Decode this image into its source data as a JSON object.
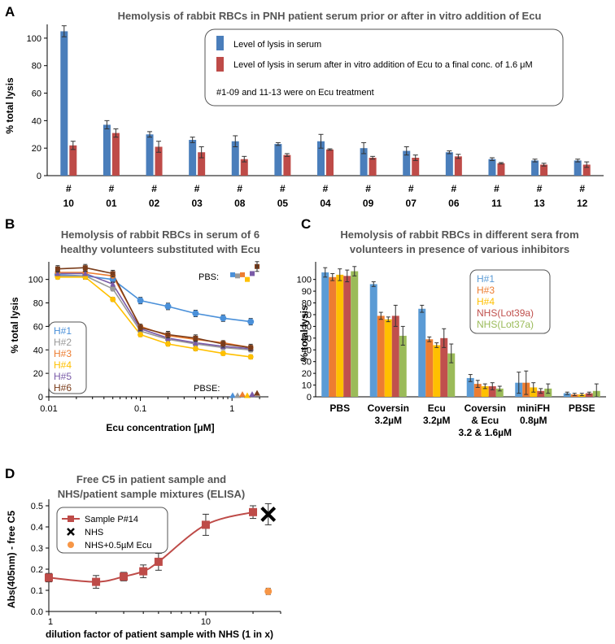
{
  "chart_data": [
    {
      "panel": "A",
      "type": "bar",
      "title": "Hemolysis of rabbit RBCs in PNH patient serum prior or after in vitro addition of Ecu",
      "ylabel": "% total lysis",
      "ylim": [
        0,
        110
      ],
      "yticks": [
        0,
        20,
        40,
        60,
        80,
        100
      ],
      "categories": [
        "10",
        "01",
        "02",
        "03",
        "08",
        "05",
        "04",
        "09",
        "07",
        "06",
        "11",
        "13",
        "12"
      ],
      "category_prefix": "#",
      "series": [
        {
          "name": "Level of lysis in serum",
          "color": "#4a7ebb",
          "values": [
            105,
            37,
            30,
            26,
            25,
            23,
            25,
            20,
            18,
            17,
            12,
            11,
            11
          ],
          "errors": [
            4,
            3,
            2,
            2,
            4,
            1,
            5,
            4,
            3,
            1,
            1,
            1,
            1
          ]
        },
        {
          "name": "Level of lysis in serum after in vitro addition of Ecu to a final conc. of 1.6 μM",
          "color": "#be4b48",
          "values": [
            22,
            31,
            21,
            17,
            12,
            15,
            19,
            13,
            13,
            14,
            9,
            8,
            8
          ],
          "errors": [
            3,
            3,
            4,
            4,
            2,
            1,
            0.5,
            1,
            2,
            1.5,
            0.5,
            1,
            2
          ]
        }
      ],
      "note": "#1-09 and 11-13 were on Ecu treatment"
    },
    {
      "panel": "B",
      "type": "line",
      "title_lines": [
        "Hemolysis of rabbit RBCs in serum of 6",
        "healthy volunteers substituted with Ecu"
      ],
      "xlabel": "Ecu concentration [μM]",
      "ylabel": "% total lysis",
      "xscale": "log",
      "xlim": [
        0.01,
        2.5
      ],
      "ylim": [
        0,
        115
      ],
      "yticks": [
        0,
        20,
        40,
        60,
        80,
        100
      ],
      "xticks": [
        {
          "v": 0.01,
          "label": "0.01"
        },
        {
          "v": 0.1,
          "label": "0.1"
        },
        {
          "v": 1,
          "label": "1"
        }
      ],
      "x": [
        0.0125,
        0.025,
        0.05,
        0.1,
        0.2,
        0.4,
        0.8,
        1.6
      ],
      "series": [
        {
          "name": "H#1",
          "color": "#4a90d9",
          "values": [
            104,
            103,
            100,
            82,
            77,
            71,
            67,
            64
          ],
          "pbs": 104,
          "pbse": 1
        },
        {
          "name": "H#2",
          "color": "#999999",
          "values": [
            103,
            103,
            92,
            56,
            49,
            45,
            42,
            40
          ],
          "pbs": 103,
          "pbse": 1
        },
        {
          "name": "H#3",
          "color": "#ed7d31",
          "values": [
            106,
            106,
            103,
            60,
            52,
            49,
            46,
            42
          ],
          "pbs": 104,
          "pbse": 2
        },
        {
          "name": "H#4",
          "color": "#ffc000",
          "values": [
            102,
            102,
            83,
            53,
            45,
            41,
            37,
            34
          ],
          "pbs": 100,
          "pbse": 1
        },
        {
          "name": "H#5",
          "color": "#7a5ba8",
          "values": [
            105,
            105,
            96,
            58,
            50,
            46,
            43,
            41
          ],
          "pbs": 105,
          "pbse": 2
        },
        {
          "name": "H#6",
          "color": "#7a3c1a",
          "values": [
            109,
            110,
            105,
            59,
            53,
            50,
            45,
            42
          ],
          "pbs": 111,
          "pbse": 3
        }
      ],
      "annotations": [
        "PBS:",
        "PBSE:"
      ]
    },
    {
      "panel": "C",
      "type": "bar",
      "title_lines": [
        "Hemolysis of rabbit RBCs in different sera from",
        "volunteers in presence of various inhibitors"
      ],
      "ylabel": "% total lysis",
      "ylim": [
        0,
        115
      ],
      "yticks": [
        0,
        10,
        20,
        30,
        40,
        50,
        60,
        70,
        80,
        90,
        100
      ],
      "categories": [
        [
          "PBS"
        ],
        [
          "Coversin",
          "3.2µM"
        ],
        [
          "Ecu",
          "3.2µM"
        ],
        [
          "Coversin",
          "& Ecu",
          "3.2 & 1.6µM"
        ],
        [
          "miniFH",
          "0.8µM"
        ],
        [
          "PBSE"
        ]
      ],
      "series": [
        {
          "name": "H#1",
          "color": "#5b9bd5",
          "values": [
            106,
            96,
            75,
            16,
            12,
            3
          ],
          "errors": [
            4,
            2,
            3,
            3,
            9,
            1
          ]
        },
        {
          "name": "H#3",
          "color": "#ed7d31",
          "values": [
            102,
            69,
            49,
            11,
            12,
            2
          ],
          "errors": [
            3,
            3,
            2,
            3,
            10,
            1
          ]
        },
        {
          "name": "H#4",
          "color": "#ffc000",
          "values": [
            104,
            66,
            44,
            9,
            8,
            2
          ],
          "errors": [
            5,
            2,
            2,
            2,
            4,
            1
          ]
        },
        {
          "name": "NHS(Lot39a)",
          "color": "#c0504d",
          "values": [
            103,
            69,
            50,
            9,
            5,
            3
          ],
          "errors": [
            5,
            9,
            8,
            3,
            2,
            1
          ]
        },
        {
          "name": "NHS(Lot37a)",
          "color": "#9bbb59",
          "values": [
            107,
            52,
            37,
            7,
            7,
            5
          ],
          "errors": [
            4,
            8,
            8,
            2,
            4,
            6
          ]
        }
      ]
    },
    {
      "panel": "D",
      "type": "scatter",
      "title_lines": [
        "Free C5 in patient sample and",
        "NHS/patient sample mixtures (ELISA)"
      ],
      "xlabel": "dilution factor of patient sample with NHS (1 in x)",
      "ylabel": "Abs(405nm) - free C5",
      "xscale": "log",
      "xlim": [
        1,
        30
      ],
      "ylim": [
        0,
        0.5
      ],
      "yticks": [
        0,
        0.1,
        0.2,
        0.3,
        0.4,
        0.5
      ],
      "xticks": [
        {
          "v": 1,
          "label": "1"
        },
        {
          "v": 10,
          "label": "10"
        }
      ],
      "series": [
        {
          "name": "Sample P#14",
          "color": "#be4b48",
          "marker": "square",
          "x": [
            1,
            2,
            3,
            4,
            5,
            10,
            20
          ],
          "values": [
            0.16,
            0.14,
            0.165,
            0.19,
            0.235,
            0.41,
            0.47
          ],
          "errors": [
            0.02,
            0.03,
            0.02,
            0.03,
            0.04,
            0.05,
            0.03
          ]
        },
        {
          "name": "NHS",
          "color": "#000000",
          "marker": "x",
          "x": [
            25
          ],
          "values": [
            0.46
          ],
          "errors": [
            0.05
          ]
        },
        {
          "name": "NHS+0.5µM Ecu",
          "color": "#f79646",
          "marker": "circle",
          "x": [
            25
          ],
          "values": [
            0.095
          ],
          "errors": [
            0.015
          ]
        }
      ]
    }
  ]
}
